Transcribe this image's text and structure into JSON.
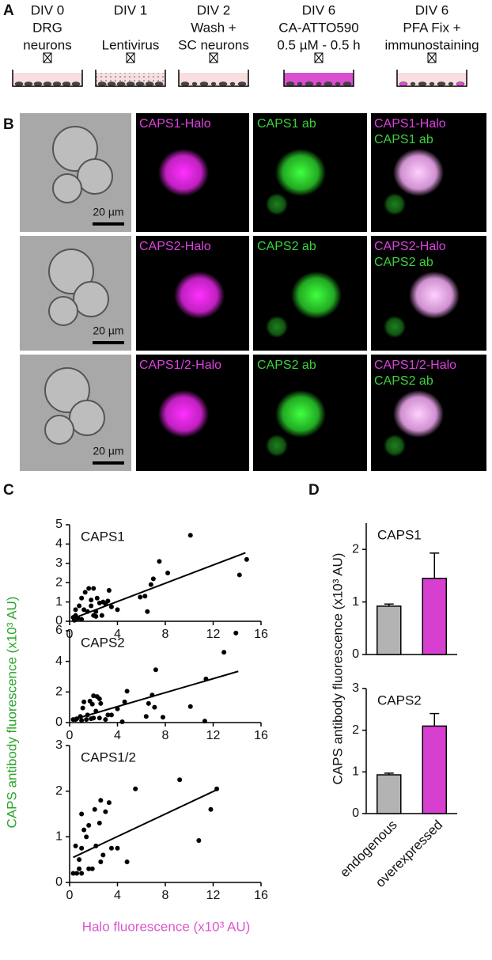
{
  "panel_a": {
    "label": "A",
    "steps": [
      [
        "DIV 0",
        "DRG",
        "neurons"
      ],
      [
        "DIV 1",
        "Lentivirus"
      ],
      [
        "DIV 2",
        "Wash +",
        "SC neurons"
      ],
      [
        "DIV 6",
        "CA-ATTO590",
        "0.5 µM - 0.5 h"
      ],
      [
        "DIV 6",
        "PFA Fix +",
        "immunostaining"
      ]
    ]
  },
  "panel_b": {
    "label": "B",
    "rows": [
      {
        "halo": "CAPS1-Halo",
        "ab": "CAPS1 ab",
        "scale": "20 µm"
      },
      {
        "halo": "CAPS2-Halo",
        "ab": "CAPS2 ab",
        "scale": "20 µm"
      },
      {
        "halo": "CAPS1/2-Halo",
        "ab": "CAPS2 ab",
        "scale": "20 µm"
      }
    ]
  },
  "panel_c": {
    "label": "C",
    "ylabel": "CAPS antibody fluorescence (x10³ AU)",
    "xlabel": "Halo fluorescence (x10³ AU)"
  },
  "panel_d": {
    "label": "D",
    "ylabel": "CAPS antibody fluorescence (x10³ AU)"
  },
  "chart_data": [
    {
      "type": "scatter",
      "title": "CAPS1",
      "color": "#000000",
      "x": [
        10.1,
        14.8,
        14.2,
        7.5,
        8.2,
        7.0,
        6.8,
        6.3,
        5.9,
        6.5,
        3.3,
        3.2,
        3.0,
        2.8,
        2.3,
        2.0,
        1.6,
        1.3,
        1.8,
        2.5,
        1.0,
        0.8,
        0.5,
        1.2,
        1.5,
        2.2,
        0.5,
        0.3,
        0.7,
        1.0,
        0.4,
        2.0,
        2.7,
        2.2,
        1.8,
        3.5,
        4.0
      ],
      "values": [
        4.45,
        3.2,
        2.4,
        3.1,
        2.5,
        2.2,
        1.9,
        1.3,
        1.25,
        0.5,
        1.6,
        1.05,
        0.9,
        1.0,
        1.2,
        1.7,
        1.7,
        1.5,
        1.1,
        0.95,
        1.2,
        0.8,
        0.6,
        0.6,
        0.5,
        0.5,
        0.3,
        0.2,
        0.15,
        0.1,
        0.05,
        0.3,
        0.3,
        0.25,
        0.8,
        0.75,
        0.6
      ],
      "fit": {
        "x": [
          0.3,
          14.7
        ],
        "values": [
          0.15,
          3.55
        ]
      },
      "xlim": [
        0,
        16
      ],
      "xticks": [
        0,
        4,
        8,
        12,
        16
      ],
      "ylim": [
        0,
        5
      ],
      "yticks": [
        0,
        1,
        2,
        3,
        4,
        5
      ]
    },
    {
      "type": "scatter",
      "title": "CAPS2",
      "color": "#000000",
      "x": [
        13.9,
        12.9,
        7.2,
        11.4,
        4.8,
        10.1,
        6.9,
        6.6,
        7.1,
        6.4,
        7.8,
        11.3,
        4.6,
        4.0,
        3.5,
        3.2,
        2.3,
        2.0,
        2.5,
        2.6,
        1.7,
        1.9,
        1.2,
        1.1,
        2.2,
        1.5,
        0.9,
        0.6,
        0.3,
        0.5,
        1.0,
        1.4,
        2.0,
        2.5,
        1.8,
        4.4,
        3.0
      ],
      "values": [
        5.85,
        4.6,
        3.45,
        2.85,
        2.05,
        1.05,
        1.8,
        1.25,
        1.0,
        0.4,
        0.35,
        0.1,
        1.35,
        0.9,
        0.5,
        0.5,
        1.7,
        1.75,
        1.55,
        1.25,
        1.4,
        1.2,
        1.35,
        0.95,
        0.75,
        0.5,
        0.4,
        0.25,
        0.2,
        0.2,
        0.15,
        0.2,
        0.3,
        0.3,
        0.25,
        0.05,
        0.2
      ],
      "fit": {
        "x": [
          0.3,
          14.1
        ],
        "values": [
          0.2,
          3.35
        ]
      },
      "xlim": [
        0,
        16
      ],
      "xticks": [
        0,
        4,
        8,
        12,
        16
      ],
      "ylim": [
        0,
        6
      ],
      "yticks": [
        0,
        2,
        4,
        6
      ]
    },
    {
      "type": "scatter",
      "title": "CAPS1/2",
      "color": "#000000",
      "x": [
        12.3,
        9.2,
        5.5,
        11.8,
        10.8,
        3.3,
        3.0,
        2.6,
        2.1,
        2.5,
        1.6,
        1.2,
        1.4,
        1.0,
        0.5,
        1.0,
        2.2,
        3.5,
        4.0,
        2.8,
        4.8,
        2.6,
        0.8,
        1.6,
        1.9,
        0.6,
        0.3,
        1.0,
        0.8
      ],
      "values": [
        2.05,
        2.25,
        2.05,
        1.6,
        0.92,
        1.75,
        1.55,
        1.8,
        1.6,
        1.3,
        1.25,
        1.15,
        1.0,
        1.5,
        0.8,
        0.75,
        0.8,
        0.75,
        0.75,
        0.6,
        0.45,
        0.45,
        0.5,
        0.3,
        0.3,
        0.2,
        0.2,
        0.2,
        0.3
      ],
      "fit": {
        "x": [
          0.3,
          12.3
        ],
        "values": [
          0.55,
          2.03
        ]
      },
      "xlim": [
        0,
        16
      ],
      "xticks": [
        0,
        4,
        8,
        12,
        16
      ],
      "ylim": [
        0,
        3
      ],
      "yticks": [
        0,
        1,
        2,
        3
      ]
    },
    {
      "type": "bar",
      "title": "CAPS1",
      "values": [
        0.92,
        1.45
      ],
      "errors": [
        0.04,
        0.48
      ],
      "colors": [
        "#b3b3b3",
        "#d63fd0"
      ],
      "ylim": [
        0,
        2.5
      ],
      "yticks": [
        0,
        1,
        2
      ]
    },
    {
      "type": "bar",
      "title": "CAPS2",
      "categories": [
        "endogenous",
        "overexpressed"
      ],
      "values": [
        0.93,
        2.1
      ],
      "errors": [
        0.04,
        0.3
      ],
      "colors": [
        "#b3b3b3",
        "#d63fd0"
      ],
      "ylim": [
        0,
        3
      ],
      "yticks": [
        0,
        1,
        2,
        3
      ]
    }
  ]
}
